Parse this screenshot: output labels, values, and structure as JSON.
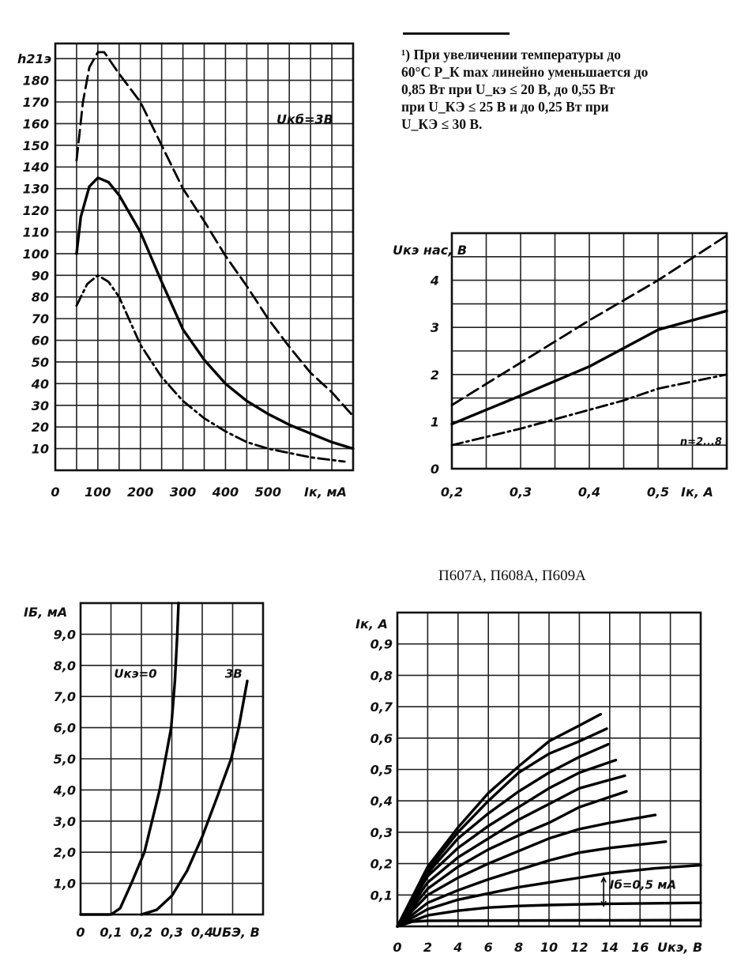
{
  "footnote": {
    "lines": [
      "¹) При увеличении температуры до",
      "60°С P_К max линейно уменьшается до",
      "0,85 Вт при U_кэ ≤ 20 В, до 0,55 Вт",
      "при U_КЭ ≤ 25 В и до 0,25 Вт при",
      "U_КЭ ≤ 30 В."
    ]
  },
  "chart_data": [
    {
      "type": "line",
      "title": "",
      "xlabel": "Iк, мА",
      "ylabel": "h21э",
      "xlim": [
        0,
        700
      ],
      "ylim": [
        0,
        197
      ],
      "grid": true,
      "grid_step": [
        50,
        10
      ],
      "annotations": [
        {
          "text": "Uкб=3В",
          "x": 520,
          "y": 160
        }
      ],
      "x_ticks": [
        {
          "v": 0,
          "label": "0"
        },
        {
          "v": 100,
          "label": "100"
        },
        {
          "v": 200,
          "label": "200"
        },
        {
          "v": 300,
          "label": "300"
        },
        {
          "v": 400,
          "label": "400"
        },
        {
          "v": 500,
          "label": "500"
        }
      ],
      "y_ticks": [
        {
          "v": 10,
          "label": "10"
        },
        {
          "v": 20,
          "label": "20"
        },
        {
          "v": 30,
          "label": "30"
        },
        {
          "v": 40,
          "label": "40"
        },
        {
          "v": 50,
          "label": "50"
        },
        {
          "v": 60,
          "label": "60"
        },
        {
          "v": 70,
          "label": "70"
        },
        {
          "v": 80,
          "label": "80"
        },
        {
          "v": 90,
          "label": "90"
        },
        {
          "v": 100,
          "label": "100"
        },
        {
          "v": 110,
          "label": "110"
        },
        {
          "v": 120,
          "label": "120"
        },
        {
          "v": 130,
          "label": "130"
        },
        {
          "v": 140,
          "label": "140"
        },
        {
          "v": 150,
          "label": "150"
        },
        {
          "v": 160,
          "label": "160"
        },
        {
          "v": 170,
          "label": "170"
        },
        {
          "v": 180,
          "label": "180"
        }
      ],
      "series": [
        {
          "name": "max",
          "style": "dashed",
          "points": [
            [
              50,
              143
            ],
            [
              65,
              170
            ],
            [
              80,
              186
            ],
            [
              100,
              193
            ],
            [
              115,
              193
            ],
            [
              150,
              183
            ],
            [
              200,
              170
            ],
            [
              250,
              150
            ],
            [
              300,
              130
            ],
            [
              350,
              115
            ],
            [
              400,
              99
            ],
            [
              450,
              85
            ],
            [
              500,
              70
            ],
            [
              550,
              57
            ],
            [
              600,
              45
            ],
            [
              650,
              36
            ],
            [
              700,
              25
            ]
          ]
        },
        {
          "name": "typical",
          "style": "solid",
          "points": [
            [
              50,
              100
            ],
            [
              60,
              117
            ],
            [
              80,
              131
            ],
            [
              100,
              135
            ],
            [
              125,
              133
            ],
            [
              150,
              127
            ],
            [
              200,
              110
            ],
            [
              250,
              87
            ],
            [
              300,
              65
            ],
            [
              350,
              51
            ],
            [
              400,
              40
            ],
            [
              450,
              32
            ],
            [
              500,
              26
            ],
            [
              550,
              21
            ],
            [
              600,
              17
            ],
            [
              650,
              13
            ],
            [
              700,
              10
            ]
          ]
        },
        {
          "name": "min",
          "style": "dashdot",
          "points": [
            [
              50,
              76
            ],
            [
              75,
              86
            ],
            [
              100,
              90
            ],
            [
              125,
              87
            ],
            [
              150,
              80
            ],
            [
              200,
              58
            ],
            [
              250,
              43
            ],
            [
              300,
              32
            ],
            [
              350,
              24
            ],
            [
              400,
              18
            ],
            [
              450,
              13
            ],
            [
              500,
              10
            ],
            [
              550,
              8
            ],
            [
              600,
              6
            ],
            [
              680,
              4
            ]
          ]
        }
      ]
    },
    {
      "type": "line",
      "title": "",
      "xlabel": "Iк, А",
      "ylabel": "Uкэ нас, В",
      "xlim": [
        0.2,
        0.6
      ],
      "ylim": [
        0,
        5
      ],
      "grid": true,
      "grid_step": [
        0.05,
        0.5
      ],
      "annotations": [
        {
          "text": "n=2...8",
          "x": 0.532,
          "y": 0.5
        }
      ],
      "x_ticks": [
        {
          "v": 0.2,
          "label": "0,2"
        },
        {
          "v": 0.3,
          "label": "0,3"
        },
        {
          "v": 0.4,
          "label": "0,4"
        },
        {
          "v": 0.5,
          "label": "0,5"
        }
      ],
      "y_ticks": [
        {
          "v": 0,
          "label": "0"
        },
        {
          "v": 1,
          "label": "1"
        },
        {
          "v": 2,
          "label": "2"
        },
        {
          "v": 3,
          "label": "3"
        },
        {
          "v": 4,
          "label": "4"
        }
      ],
      "series": [
        {
          "name": "max",
          "style": "dashed",
          "points": [
            [
              0.2,
              1.35
            ],
            [
              0.3,
              2.25
            ],
            [
              0.4,
              3.15
            ],
            [
              0.5,
              4.0
            ],
            [
              0.6,
              4.95
            ]
          ]
        },
        {
          "name": "typical",
          "style": "solid",
          "points": [
            [
              0.2,
              0.95
            ],
            [
              0.3,
              1.55
            ],
            [
              0.4,
              2.17
            ],
            [
              0.5,
              2.95
            ],
            [
              0.6,
              3.35
            ]
          ]
        },
        {
          "name": "min",
          "style": "dashdot",
          "points": [
            [
              0.2,
              0.5
            ],
            [
              0.3,
              0.85
            ],
            [
              0.4,
              1.25
            ],
            [
              0.45,
              1.45
            ],
            [
              0.5,
              1.7
            ],
            [
              0.6,
              2.0
            ]
          ]
        }
      ]
    },
    {
      "type": "line",
      "title": "",
      "xlabel": "UБЭ, В",
      "ylabel": "IБ, мА",
      "xlim": [
        0,
        0.6
      ],
      "ylim": [
        0,
        10
      ],
      "grid": true,
      "grid_step": [
        0.1,
        1
      ],
      "annotations": [
        {
          "text": "Uкэ=0",
          "x": 0.11,
          "y": 7.6
        },
        {
          "text": "3В",
          "x": 0.475,
          "y": 7.6
        }
      ],
      "x_ticks": [
        {
          "v": 0,
          "label": "0"
        },
        {
          "v": 0.1,
          "label": "0,1"
        },
        {
          "v": 0.2,
          "label": "0,2"
        },
        {
          "v": 0.3,
          "label": "0,3"
        },
        {
          "v": 0.4,
          "label": "0,4"
        }
      ],
      "y_ticks": [
        {
          "v": 1,
          "label": "1,0"
        },
        {
          "v": 2,
          "label": "2,0"
        },
        {
          "v": 3,
          "label": "3,0"
        },
        {
          "v": 4,
          "label": "4,0"
        },
        {
          "v": 5,
          "label": "5,0"
        },
        {
          "v": 6,
          "label": "6,0"
        },
        {
          "v": 7,
          "label": "7,0"
        },
        {
          "v": 8,
          "label": "8,0"
        },
        {
          "v": 9,
          "label": "9,0"
        }
      ],
      "series": [
        {
          "name": "Uкэ=0",
          "style": "solid",
          "points": [
            [
              0,
              0
            ],
            [
              0.1,
              0
            ],
            [
              0.13,
              0.2
            ],
            [
              0.167,
              1.0
            ],
            [
              0.21,
              2.0
            ],
            [
              0.26,
              4.0
            ],
            [
              0.298,
              6.0
            ],
            [
              0.31,
              7.5
            ],
            [
              0.318,
              9.0
            ],
            [
              0.322,
              10.0
            ]
          ]
        },
        {
          "name": "3В",
          "style": "solid",
          "points": [
            [
              0.2,
              0
            ],
            [
              0.25,
              0.15
            ],
            [
              0.3,
              0.6
            ],
            [
              0.35,
              1.4
            ],
            [
              0.4,
              2.5
            ],
            [
              0.45,
              3.8
            ],
            [
              0.495,
              5.0
            ],
            [
              0.52,
              6.0
            ],
            [
              0.548,
              7.5
            ]
          ]
        }
      ]
    },
    {
      "type": "line",
      "title": "П607А, П608А, П609А",
      "xlabel": "Uкэ, В",
      "ylabel": "Iк, А",
      "xlim": [
        0,
        20
      ],
      "ylim": [
        0,
        1.0
      ],
      "grid": true,
      "grid_step": [
        2,
        0.1
      ],
      "annotations": [
        {
          "text": "Iб=0,5 мА",
          "x": 14,
          "y": 0.12
        }
      ],
      "x_ticks": [
        {
          "v": 0,
          "label": "0"
        },
        {
          "v": 2,
          "label": "2"
        },
        {
          "v": 4,
          "label": "4"
        },
        {
          "v": 6,
          "label": "6"
        },
        {
          "v": 8,
          "label": "8"
        },
        {
          "v": 10,
          "label": "10"
        },
        {
          "v": 12,
          "label": "12"
        },
        {
          "v": 14,
          "label": "14"
        },
        {
          "v": 16,
          "label": "16"
        }
      ],
      "y_ticks": [
        {
          "v": 0.1,
          "label": "0,1"
        },
        {
          "v": 0.2,
          "label": "0,2"
        },
        {
          "v": 0.3,
          "label": "0,3"
        },
        {
          "v": 0.4,
          "label": "0,4"
        },
        {
          "v": 0.5,
          "label": "0,5"
        },
        {
          "v": 0.6,
          "label": "0,6"
        },
        {
          "v": 0.7,
          "label": "0,7"
        },
        {
          "v": 0.8,
          "label": "0,8"
        },
        {
          "v": 0.9,
          "label": "0,9"
        }
      ],
      "series": [
        {
          "name": "curve-1",
          "style": "solid",
          "points": [
            [
              0,
              0
            ],
            [
              2,
              0.19
            ],
            [
              4,
              0.315
            ],
            [
              6,
              0.425
            ],
            [
              8,
              0.51
            ],
            [
              10,
              0.59
            ],
            [
              12,
              0.64
            ],
            [
              13.4,
              0.676
            ]
          ]
        },
        {
          "name": "curve-2",
          "style": "solid",
          "points": [
            [
              0,
              0
            ],
            [
              2,
              0.18
            ],
            [
              4,
              0.3
            ],
            [
              6,
              0.4
            ],
            [
              8,
              0.49
            ],
            [
              10,
              0.55
            ],
            [
              12,
              0.59
            ],
            [
              13.8,
              0.63
            ]
          ]
        },
        {
          "name": "curve-3",
          "style": "solid",
          "points": [
            [
              0,
              0
            ],
            [
              2,
              0.17
            ],
            [
              4,
              0.28
            ],
            [
              6,
              0.36
            ],
            [
              8,
              0.43
            ],
            [
              10,
              0.49
            ],
            [
              12,
              0.54
            ],
            [
              13.9,
              0.58
            ]
          ]
        },
        {
          "name": "curve-4",
          "style": "solid",
          "points": [
            [
              0,
              0
            ],
            [
              2,
              0.16
            ],
            [
              4,
              0.25
            ],
            [
              6,
              0.32
            ],
            [
              8,
              0.38
            ],
            [
              10,
              0.44
            ],
            [
              12,
              0.49
            ],
            [
              14.4,
              0.53
            ]
          ]
        },
        {
          "name": "curve-5",
          "style": "solid",
          "points": [
            [
              0,
              0
            ],
            [
              2,
              0.14
            ],
            [
              4,
              0.22
            ],
            [
              6,
              0.28
            ],
            [
              8,
              0.34
            ],
            [
              10,
              0.39
            ],
            [
              12,
              0.44
            ],
            [
              15,
              0.48
            ]
          ]
        },
        {
          "name": "curve-6",
          "style": "solid",
          "points": [
            [
              0,
              0
            ],
            [
              2,
              0.12
            ],
            [
              4,
              0.19
            ],
            [
              6,
              0.245
            ],
            [
              8,
              0.29
            ],
            [
              10,
              0.33
            ],
            [
              12,
              0.38
            ],
            [
              15.1,
              0.43
            ]
          ]
        },
        {
          "name": "curve-7",
          "style": "solid",
          "points": [
            [
              0,
              0
            ],
            [
              2,
              0.1
            ],
            [
              4,
              0.155
            ],
            [
              6,
              0.2
            ],
            [
              8,
              0.24
            ],
            [
              10,
              0.28
            ],
            [
              12,
              0.31
            ],
            [
              14,
              0.33
            ],
            [
              17,
              0.355
            ]
          ]
        },
        {
          "name": "curve-8",
          "style": "solid",
          "points": [
            [
              0,
              0
            ],
            [
              2,
              0.075
            ],
            [
              4,
              0.115
            ],
            [
              6,
              0.15
            ],
            [
              8,
              0.18
            ],
            [
              10,
              0.21
            ],
            [
              12,
              0.235
            ],
            [
              14,
              0.25
            ],
            [
              17.7,
              0.27
            ]
          ]
        },
        {
          "name": "curve-9",
          "style": "solid",
          "points": [
            [
              0,
              0
            ],
            [
              2,
              0.055
            ],
            [
              4,
              0.085
            ],
            [
              6,
              0.105
            ],
            [
              8,
              0.125
            ],
            [
              10,
              0.14
            ],
            [
              12,
              0.155
            ],
            [
              14,
              0.17
            ],
            [
              17,
              0.185
            ],
            [
              20,
              0.195
            ]
          ]
        },
        {
          "name": "curve-10",
          "style": "solid",
          "points": [
            [
              0,
              0
            ],
            [
              2,
              0.035
            ],
            [
              4,
              0.05
            ],
            [
              6,
              0.06
            ],
            [
              8,
              0.065
            ],
            [
              10,
              0.068
            ],
            [
              14,
              0.072
            ],
            [
              20,
              0.075
            ]
          ]
        },
        {
          "name": "curve-11",
          "style": "solid",
          "points": [
            [
              0,
              0
            ],
            [
              1,
              0.015
            ],
            [
              2,
              0.018
            ],
            [
              20,
              0.02
            ]
          ]
        }
      ]
    }
  ]
}
